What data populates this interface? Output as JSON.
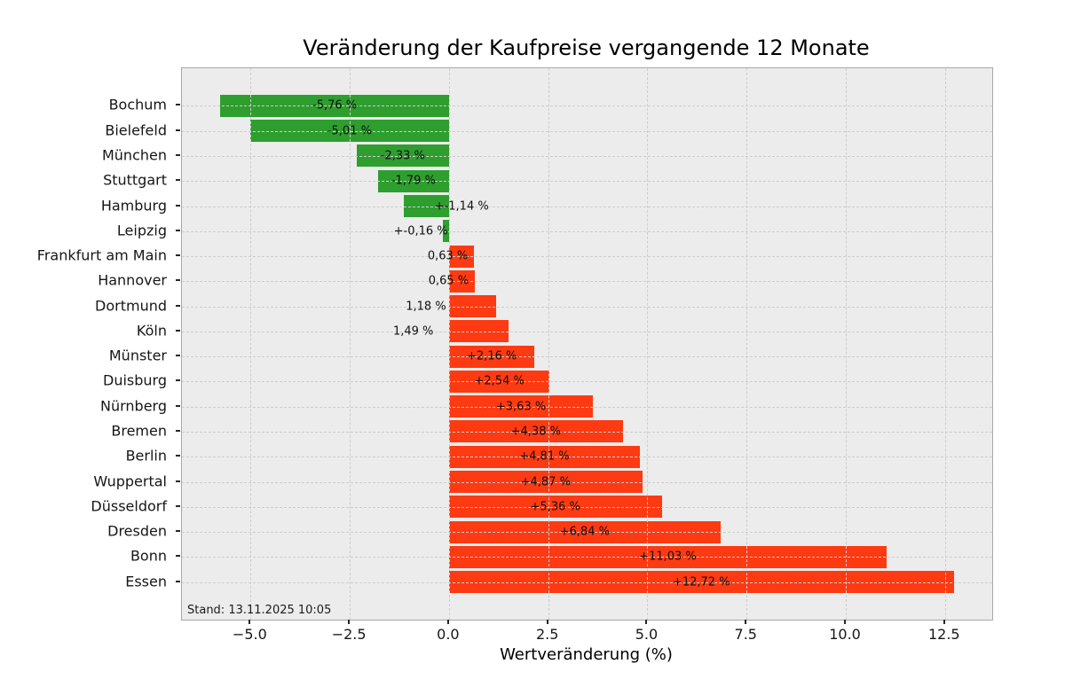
{
  "chart_data": {
    "type": "bar",
    "orientation": "horizontal",
    "title": "Veränderung der Kaufpreise vergangende 12 Monate",
    "xlabel": "Wertveränderung (%)",
    "status_note": "Stand: 13.11.2025 10:05",
    "grid": true,
    "xlim": [
      -6.73,
      13.69
    ],
    "x_ticks": [
      {
        "value": -5.0,
        "label": "−5.0"
      },
      {
        "value": -2.5,
        "label": "−2.5"
      },
      {
        "value": 0.0,
        "label": "0.0"
      },
      {
        "value": 2.5,
        "label": "2.5"
      },
      {
        "value": 5.0,
        "label": "5.0"
      },
      {
        "value": 7.5,
        "label": "7.5"
      },
      {
        "value": 10.0,
        "label": "10.0"
      },
      {
        "value": 12.5,
        "label": "12.5"
      }
    ],
    "colors": {
      "negative_bar": "#2e9e2f",
      "positive_bar": "#fd3a12",
      "plot_background": "#ececec",
      "figure_background": "#ffffff",
      "gridline": "#cdcdcd"
    },
    "rows": [
      {
        "city": "Bochum",
        "value": -5.76,
        "label": "-5,76 %"
      },
      {
        "city": "Bielefeld",
        "value": -5.01,
        "label": "-5,01 %"
      },
      {
        "city": "München",
        "value": -2.33,
        "label": "-2,33 %"
      },
      {
        "city": "Stuttgart",
        "value": -1.79,
        "label": "-1,79 %"
      },
      {
        "city": "Hamburg",
        "value": -1.14,
        "label": "+-1,14 %",
        "label_x": 0.32
      },
      {
        "city": "Leipzig",
        "value": -0.16,
        "label": "+-0,16 %",
        "label_x": -0.71
      },
      {
        "city": "Frankfurt am Main",
        "value": 0.63,
        "label": "0,63 %",
        "label_x": -0.03
      },
      {
        "city": "Hannover",
        "value": 0.65,
        "label": "0,65 %",
        "label_x": -0.01
      },
      {
        "city": "Dortmund",
        "value": 1.18,
        "label": "1,18 %",
        "label_x": -0.58
      },
      {
        "city": "Köln",
        "value": 1.49,
        "label": "1,49 %",
        "label_x": -0.9
      },
      {
        "city": "Münster",
        "value": 2.16,
        "label": "+2,16 %"
      },
      {
        "city": "Duisburg",
        "value": 2.54,
        "label": "+2,54 %"
      },
      {
        "city": "Nürnberg",
        "value": 3.63,
        "label": "+3,63 %"
      },
      {
        "city": "Bremen",
        "value": 4.38,
        "label": "+4,38 %"
      },
      {
        "city": "Berlin",
        "value": 4.81,
        "label": "+4,81 %"
      },
      {
        "city": "Wuppertal",
        "value": 4.87,
        "label": "+4,87 %"
      },
      {
        "city": "Düsseldorf",
        "value": 5.36,
        "label": "+5,36 %"
      },
      {
        "city": "Dresden",
        "value": 6.84,
        "label": "+6,84 %"
      },
      {
        "city": "Bonn",
        "value": 11.03,
        "label": "+11,03 %"
      },
      {
        "city": "Essen",
        "value": 12.72,
        "label": "+12,72 %"
      }
    ]
  }
}
